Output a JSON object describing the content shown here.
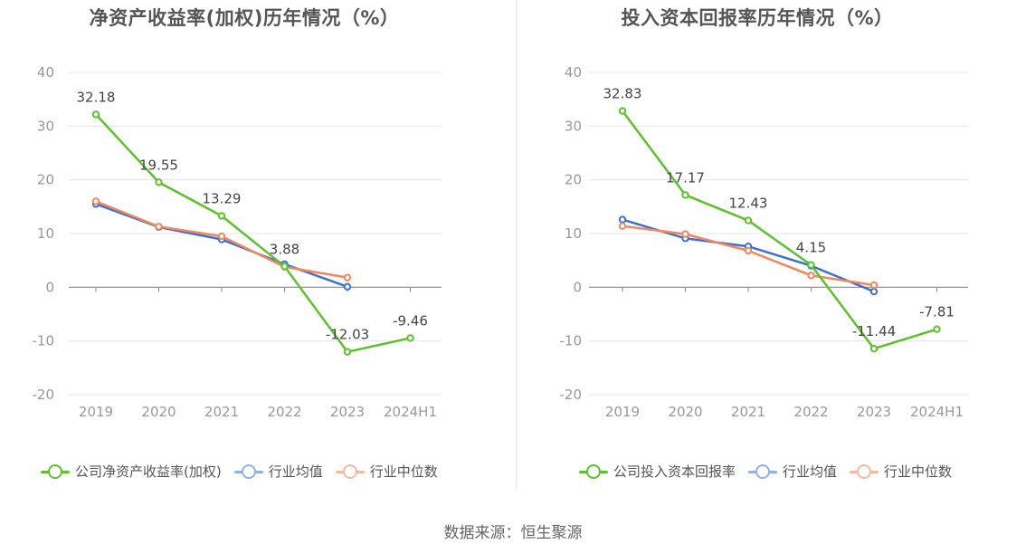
{
  "source_text": "数据来源：恒生聚源",
  "chart_data": [
    {
      "type": "line",
      "title": "净资产收益率(加权)历年情况（%）",
      "categories": [
        "2019",
        "2020",
        "2021",
        "2022",
        "2023",
        "2024H1"
      ],
      "ylim": [
        -20,
        40
      ],
      "yticks": [
        40,
        30,
        20,
        10,
        0,
        -10,
        -20
      ],
      "grid": true,
      "legend_position": "bottom",
      "series": [
        {
          "name": "公司净资产收益率(加权)",
          "color": "#5cc22c",
          "values": [
            32.18,
            19.55,
            13.29,
            3.88,
            -12.03,
            -9.46
          ],
          "labels": [
            "32.18",
            "19.55",
            "13.29",
            "3.88",
            "-12.03",
            "-9.46"
          ]
        },
        {
          "name": "行业均值",
          "color": "#3d6fd9",
          "legend_color": "#8fb0f0",
          "values": [
            15.5,
            11.2,
            8.9,
            4.3,
            0.1,
            null
          ]
        },
        {
          "name": "行业中位数",
          "color": "#f0885a",
          "legend_color": "#f7b8a0",
          "values": [
            16.0,
            11.3,
            9.5,
            3.8,
            1.8,
            null
          ]
        }
      ]
    },
    {
      "type": "line",
      "title": "投入资本回报率历年情况（%）",
      "categories": [
        "2019",
        "2020",
        "2021",
        "2022",
        "2023",
        "2024H1"
      ],
      "ylim": [
        -20,
        40
      ],
      "yticks": [
        40,
        30,
        20,
        10,
        0,
        -10,
        -20
      ],
      "grid": true,
      "legend_position": "bottom",
      "series": [
        {
          "name": "公司投入资本回报率",
          "color": "#5cc22c",
          "values": [
            32.83,
            17.17,
            12.43,
            4.15,
            -11.44,
            -7.81
          ],
          "labels": [
            "32.83",
            "17.17",
            "12.43",
            "4.15",
            "-11.44",
            "-7.81"
          ]
        },
        {
          "name": "行业均值",
          "color": "#3d6fd9",
          "legend_color": "#8fb0f0",
          "values": [
            12.6,
            9.1,
            7.6,
            4.0,
            -0.8,
            null
          ]
        },
        {
          "name": "行业中位数",
          "color": "#f0885a",
          "legend_color": "#f7b8a0",
          "values": [
            11.4,
            9.9,
            6.8,
            2.2,
            0.4,
            null
          ]
        }
      ]
    }
  ]
}
